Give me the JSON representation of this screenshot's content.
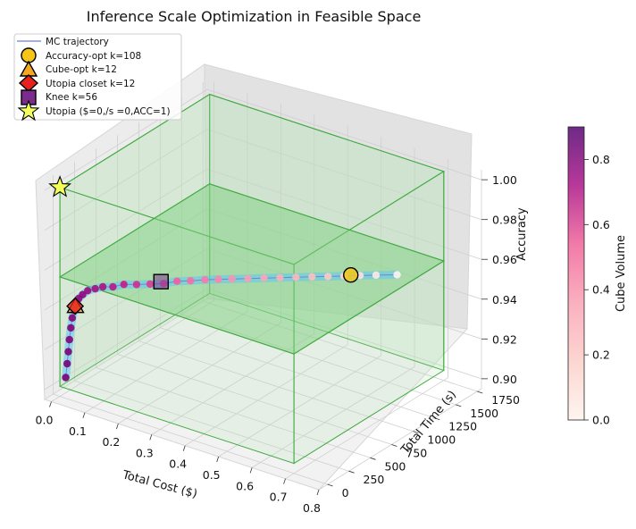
{
  "chart_data": {
    "type": "scatter3d",
    "title": "Inference Scale Optimization in Feasible Space",
    "xlabel": "Total Cost ($)",
    "ylabel": "Total Time (s)",
    "zlabel": "Accuracy",
    "colorbar_label": "Cube Volume",
    "xlim": [
      -0.02,
      0.8
    ],
    "ylim": [
      -100,
      1800
    ],
    "zlim": [
      0.895,
      1.005
    ],
    "x_ticks": [
      "0.0",
      "0.1",
      "0.2",
      "0.3",
      "0.4",
      "0.5",
      "0.6",
      "0.7",
      "0.8"
    ],
    "y_ticks": [
      "0",
      "250",
      "500",
      "750",
      "1000",
      "1250",
      "1500",
      "1750"
    ],
    "z_ticks": [
      "0.90",
      "0.92",
      "0.94",
      "0.96",
      "0.98",
      "1.00"
    ],
    "colorbar_ticks": [
      "0.0",
      "0.2",
      "0.4",
      "0.6",
      "0.8"
    ],
    "colorbar_range": [
      0,
      0.9
    ],
    "feasible_box": {
      "x": [
        0.0,
        0.7
      ],
      "y": [
        0,
        1750
      ],
      "z": [
        0.9,
        1.0
      ],
      "floor_z": 0.955
    },
    "mc_trajectory": [
      {
        "x": 0.015,
        "y": 10,
        "z": 0.905,
        "v": 0.9
      },
      {
        "x": 0.018,
        "y": 15,
        "z": 0.912,
        "v": 0.9
      },
      {
        "x": 0.02,
        "y": 20,
        "z": 0.918,
        "v": 0.9
      },
      {
        "x": 0.022,
        "y": 25,
        "z": 0.924,
        "v": 0.89
      },
      {
        "x": 0.025,
        "y": 30,
        "z": 0.93,
        "v": 0.89
      },
      {
        "x": 0.028,
        "y": 35,
        "z": 0.935,
        "v": 0.88
      },
      {
        "x": 0.032,
        "y": 40,
        "z": 0.939,
        "v": 0.88
      },
      {
        "x": 0.037,
        "y": 48,
        "z": 0.942,
        "v": 0.87
      },
      {
        "x": 0.042,
        "y": 55,
        "z": 0.945,
        "v": 0.86
      },
      {
        "x": 0.05,
        "y": 70,
        "z": 0.947,
        "v": 0.85
      },
      {
        "x": 0.06,
        "y": 90,
        "z": 0.949,
        "v": 0.83
      },
      {
        "x": 0.075,
        "y": 120,
        "z": 0.95,
        "v": 0.8
      },
      {
        "x": 0.09,
        "y": 150,
        "z": 0.951,
        "v": 0.78
      },
      {
        "x": 0.11,
        "y": 190,
        "z": 0.951,
        "v": 0.75
      },
      {
        "x": 0.13,
        "y": 240,
        "z": 0.952,
        "v": 0.72
      },
      {
        "x": 0.155,
        "y": 290,
        "z": 0.952,
        "v": 0.68
      },
      {
        "x": 0.18,
        "y": 350,
        "z": 0.952,
        "v": 0.64
      },
      {
        "x": 0.205,
        "y": 410,
        "z": 0.952,
        "v": 0.6
      },
      {
        "x": 0.23,
        "y": 470,
        "z": 0.953,
        "v": 0.56
      },
      {
        "x": 0.255,
        "y": 530,
        "z": 0.953,
        "v": 0.52
      },
      {
        "x": 0.28,
        "y": 600,
        "z": 0.953,
        "v": 0.48
      },
      {
        "x": 0.305,
        "y": 660,
        "z": 0.953,
        "v": 0.44
      },
      {
        "x": 0.33,
        "y": 720,
        "z": 0.953,
        "v": 0.4
      },
      {
        "x": 0.36,
        "y": 790,
        "z": 0.953,
        "v": 0.36
      },
      {
        "x": 0.39,
        "y": 860,
        "z": 0.953,
        "v": 0.32
      },
      {
        "x": 0.42,
        "y": 930,
        "z": 0.953,
        "v": 0.28
      },
      {
        "x": 0.45,
        "y": 1000,
        "z": 0.953,
        "v": 0.24
      },
      {
        "x": 0.48,
        "y": 1070,
        "z": 0.953,
        "v": 0.2
      },
      {
        "x": 0.51,
        "y": 1140,
        "z": 0.953,
        "v": 0.16
      },
      {
        "x": 0.54,
        "y": 1210,
        "z": 0.953,
        "v": 0.12
      },
      {
        "x": 0.57,
        "y": 1280,
        "z": 0.953,
        "v": 0.08
      },
      {
        "x": 0.6,
        "y": 1350,
        "z": 0.953,
        "v": 0.04
      },
      {
        "x": 0.64,
        "y": 1440,
        "z": 0.953,
        "v": 0.0
      }
    ],
    "markers": [
      {
        "label": "Accuracy-opt k=108",
        "symbol": "circle",
        "color": "#f5c518",
        "x": 0.55,
        "y": 1250,
        "z": 0.953
      },
      {
        "label": "Cube-opt k=12",
        "symbol": "triangle",
        "color": "#f5a623",
        "x": 0.035,
        "y": 45,
        "z": 0.941
      },
      {
        "label": "Utopia closet k=12",
        "symbol": "diamond",
        "color": "#e8201e",
        "x": 0.034,
        "y": 45,
        "z": 0.941
      },
      {
        "label": "Knee k=56",
        "symbol": "square",
        "color": "#7b2d8b",
        "x": 0.2,
        "y": 400,
        "z": 0.953
      },
      {
        "label": "Utopia ($=0,/s =0,ACC=1)",
        "symbol": "star",
        "color": "#f5ff5a",
        "x": 0.0,
        "y": 0,
        "z": 1.0
      }
    ],
    "legend_line": {
      "label": "MC trajectory",
      "color": "#6f7be0"
    },
    "legend_position": "top-left",
    "colors": {
      "box_edge": "#3faa3f",
      "box_fill": "#b5e3b5",
      "floor_fill": "#7fcf7f",
      "tube": "#5bc8f2",
      "cmap": [
        "#fff5f0",
        "#fcc5c0",
        "#fa9fb5",
        "#f768a1",
        "#c51b8a",
        "#7a0177"
      ]
    }
  }
}
